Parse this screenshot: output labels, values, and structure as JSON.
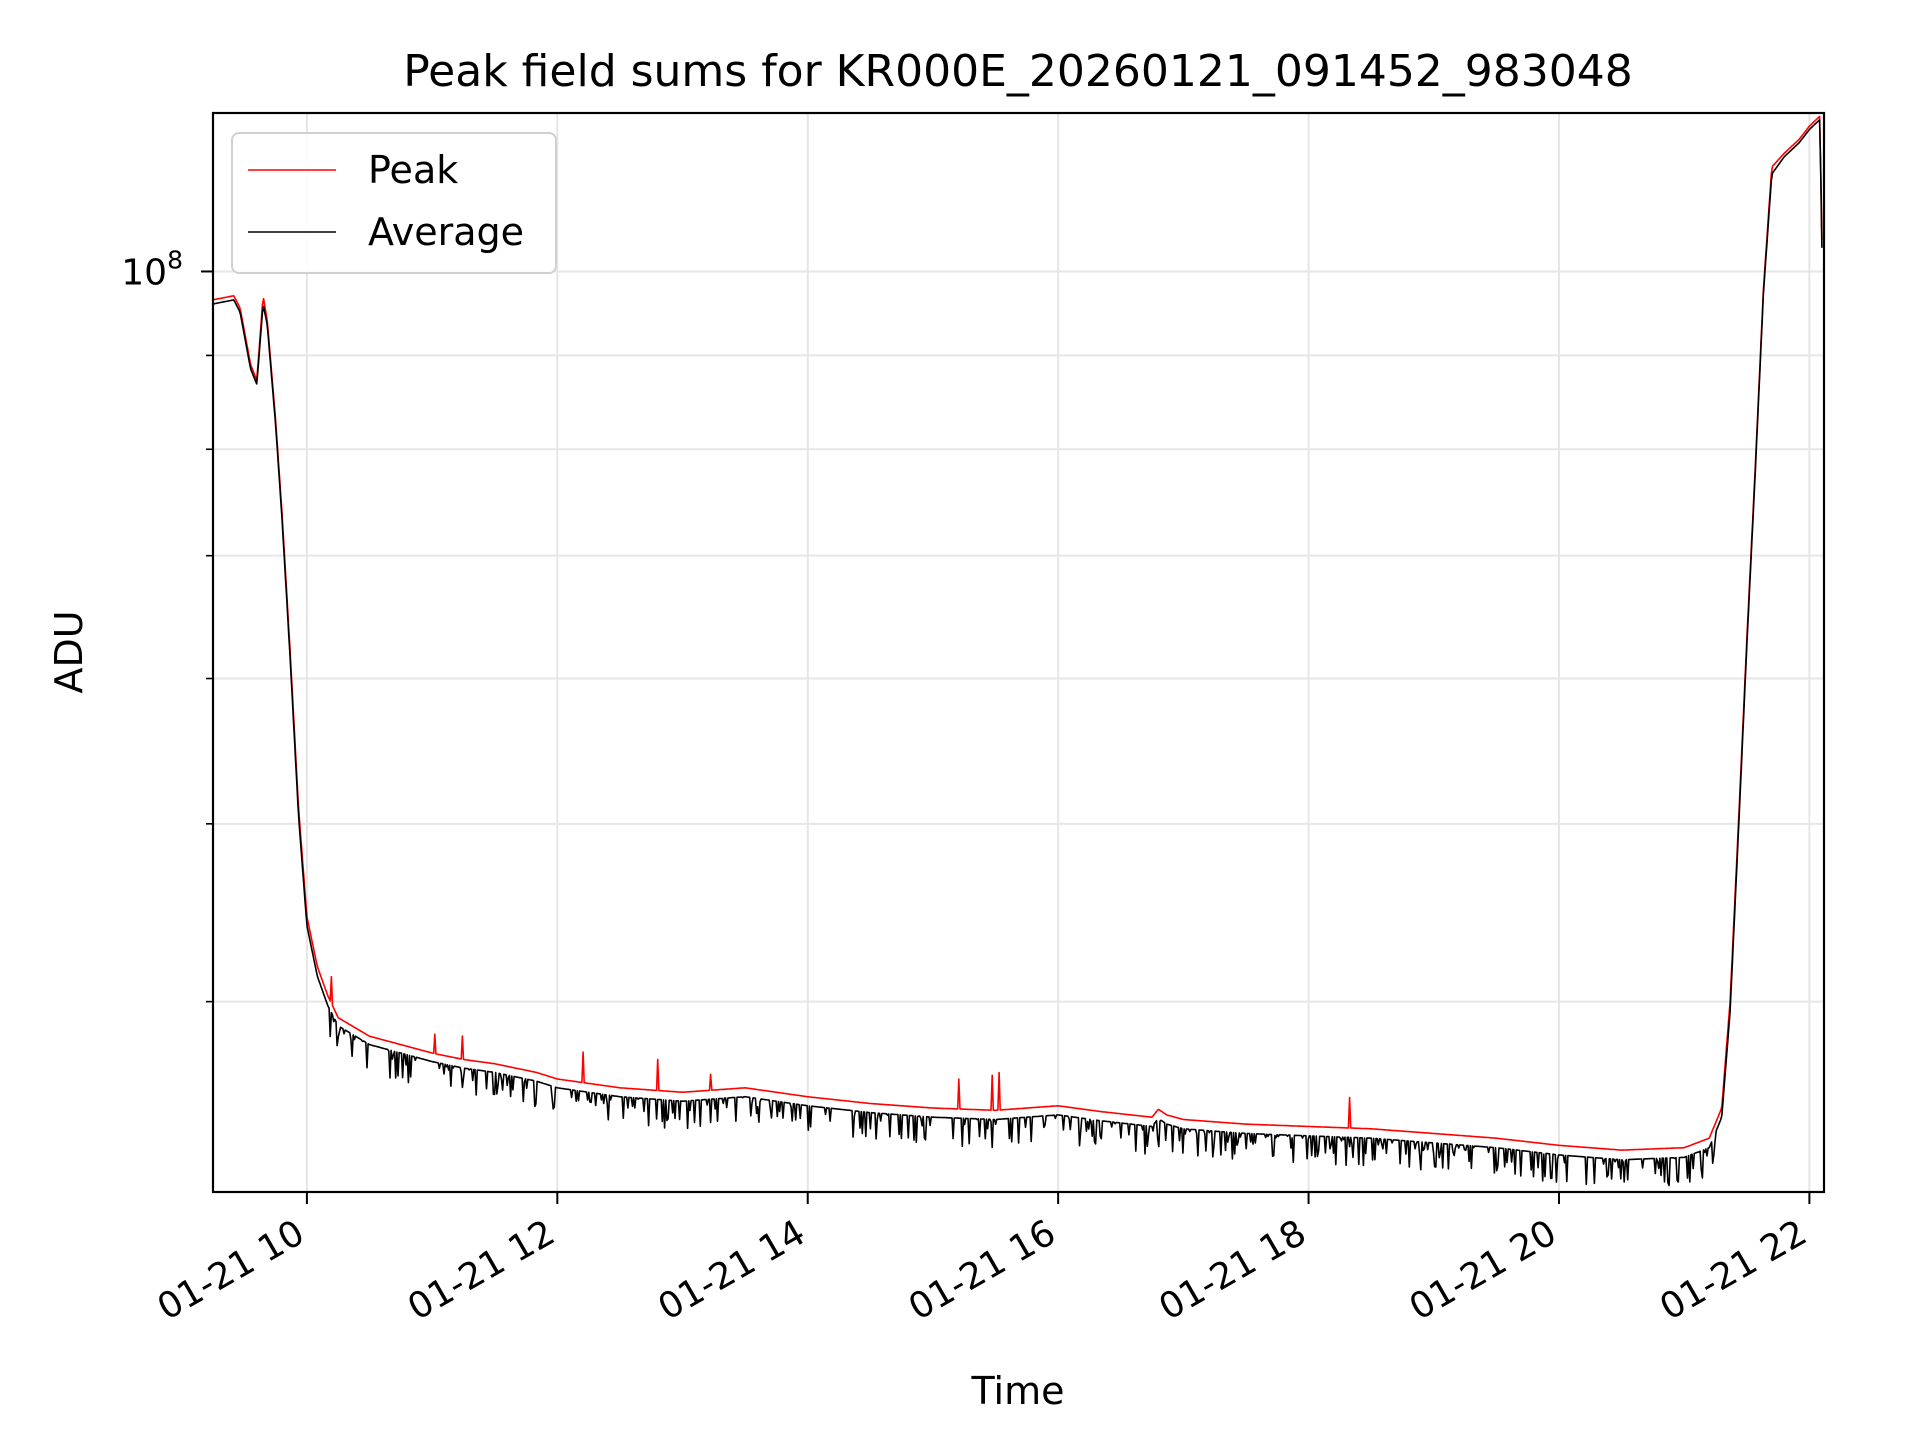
{
  "chart_data": {
    "type": "line",
    "title": "Peak field sums for KR000E_20260121_091452_983048",
    "xlabel": "Time",
    "ylabel": "ADU",
    "x_axis": {
      "kind": "datetime",
      "date": "2026-01-21",
      "xlim": [
        "2026-01-21 09:15",
        "2026-01-21 22:07"
      ],
      "ticks": [
        {
          "t": "2026-01-21 10:00",
          "label": "01-21 10"
        },
        {
          "t": "2026-01-21 12:00",
          "label": "01-21 12"
        },
        {
          "t": "2026-01-21 14:00",
          "label": "01-21 14"
        },
        {
          "t": "2026-01-21 16:00",
          "label": "01-21 16"
        },
        {
          "t": "2026-01-21 18:00",
          "label": "01-21 18"
        },
        {
          "t": "2026-01-21 20:00",
          "label": "01-21 20"
        },
        {
          "t": "2026-01-21 22:00",
          "label": "01-21 22"
        }
      ]
    },
    "y_axis": {
      "scale": "log",
      "ylim": [
        31500000,
        122000000
      ],
      "major_ticks": [
        {
          "value": 100000000,
          "base": "10",
          "exponent": "8"
        }
      ],
      "minor_ticks": [
        40000000,
        50000000,
        60000000,
        70000000,
        80000000,
        90000000
      ]
    },
    "grid": true,
    "legend_position": "upper-left",
    "colors": {
      "peak": "#ff0000",
      "average": "#000000",
      "grid": "#e6e6e6",
      "legend_border": "#d0d0d0"
    },
    "series": [
      {
        "name": "Peak",
        "color": "#ff0000",
        "points": [
          [
            "09:15",
            96500000
          ],
          [
            "09:25",
            97000000
          ],
          [
            "09:28",
            95500000
          ],
          [
            "09:33",
            89000000
          ],
          [
            "09:36",
            87200000
          ],
          [
            "09:39",
            97000000
          ],
          [
            "09:41",
            94000000
          ],
          [
            "09:45",
            83000000
          ],
          [
            "09:48",
            74000000
          ],
          [
            "09:52",
            62000000
          ],
          [
            "09:56",
            51000000
          ],
          [
            "10:00",
            44500000
          ],
          [
            "10:05",
            41800000
          ],
          [
            "10:10",
            40300000
          ],
          [
            "10:15",
            39200000
          ],
          [
            "10:30",
            38300000
          ],
          [
            "10:45",
            37900000
          ],
          [
            "11:00",
            37500000
          ],
          [
            "11:15",
            37200000
          ],
          [
            "11:30",
            37000000
          ],
          [
            "11:50",
            36600000
          ],
          [
            "12:00",
            36300000
          ],
          [
            "12:30",
            35900000
          ],
          [
            "13:00",
            35700000
          ],
          [
            "13:30",
            35900000
          ],
          [
            "13:45",
            35700000
          ],
          [
            "14:00",
            35500000
          ],
          [
            "14:30",
            35200000
          ],
          [
            "15:00",
            35000000
          ],
          [
            "15:30",
            34900000
          ],
          [
            "16:00",
            35100000
          ],
          [
            "16:20",
            34850000
          ],
          [
            "16:45",
            34600000
          ],
          [
            "16:48",
            34950000
          ],
          [
            "16:52",
            34700000
          ],
          [
            "17:00",
            34500000
          ],
          [
            "17:30",
            34300000
          ],
          [
            "18:00",
            34200000
          ],
          [
            "18:30",
            34100000
          ],
          [
            "19:00",
            33900000
          ],
          [
            "19:30",
            33700000
          ],
          [
            "20:00",
            33400000
          ],
          [
            "20:30",
            33200000
          ],
          [
            "21:00",
            33300000
          ],
          [
            "21:12",
            33700000
          ],
          [
            "21:18",
            35000000
          ],
          [
            "21:22",
            40000000
          ],
          [
            "21:26",
            50000000
          ],
          [
            "21:30",
            63000000
          ],
          [
            "21:34",
            78000000
          ],
          [
            "21:38",
            98000000
          ],
          [
            "21:42",
            114000000
          ],
          [
            "21:48",
            116000000
          ],
          [
            "21:55",
            118000000
          ],
          [
            "22:00",
            120000000
          ],
          [
            "22:05",
            121500000
          ],
          [
            "22:06",
            104000000
          ]
        ]
      },
      {
        "name": "Average",
        "color": "#000000",
        "points": [
          [
            "09:15",
            96000000
          ],
          [
            "09:25",
            96500000
          ],
          [
            "09:28",
            95000000
          ],
          [
            "09:33",
            88500000
          ],
          [
            "09:36",
            86800000
          ],
          [
            "09:39",
            96000000
          ],
          [
            "09:41",
            93500000
          ],
          [
            "09:45",
            82500000
          ],
          [
            "09:48",
            73500000
          ],
          [
            "09:52",
            61500000
          ],
          [
            "09:56",
            50500000
          ],
          [
            "10:00",
            44000000
          ],
          [
            "10:05",
            41300000
          ],
          [
            "10:10",
            39800000
          ],
          [
            "10:15",
            38800000
          ],
          [
            "10:30",
            37900000
          ],
          [
            "10:45",
            37500000
          ],
          [
            "11:00",
            37100000
          ],
          [
            "11:15",
            36800000
          ],
          [
            "11:30",
            36600000
          ],
          [
            "11:50",
            36200000
          ],
          [
            "12:00",
            35900000
          ],
          [
            "12:30",
            35500000
          ],
          [
            "13:00",
            35300000
          ],
          [
            "13:30",
            35500000
          ],
          [
            "13:45",
            35300000
          ],
          [
            "14:00",
            35100000
          ],
          [
            "14:30",
            34800000
          ],
          [
            "15:00",
            34600000
          ],
          [
            "15:30",
            34500000
          ],
          [
            "16:00",
            34700000
          ],
          [
            "16:20",
            34450000
          ],
          [
            "16:45",
            34200000
          ],
          [
            "16:48",
            34550000
          ],
          [
            "16:52",
            34300000
          ],
          [
            "17:00",
            34100000
          ],
          [
            "17:30",
            33900000
          ],
          [
            "18:00",
            33800000
          ],
          [
            "18:30",
            33700000
          ],
          [
            "19:00",
            33500000
          ],
          [
            "19:30",
            33300000
          ],
          [
            "20:00",
            33000000
          ],
          [
            "20:30",
            32800000
          ],
          [
            "21:00",
            32900000
          ],
          [
            "21:12",
            33300000
          ],
          [
            "21:18",
            34600000
          ],
          [
            "21:22",
            39500000
          ],
          [
            "21:26",
            49500000
          ],
          [
            "21:30",
            62500000
          ],
          [
            "21:34",
            77500000
          ],
          [
            "21:38",
            97500000
          ],
          [
            "21:42",
            113000000
          ],
          [
            "21:48",
            115500000
          ],
          [
            "21:55",
            117500000
          ],
          [
            "22:00",
            119500000
          ],
          [
            "22:05",
            121000000
          ],
          [
            "22:06",
            103000000
          ]
        ]
      }
    ]
  }
}
